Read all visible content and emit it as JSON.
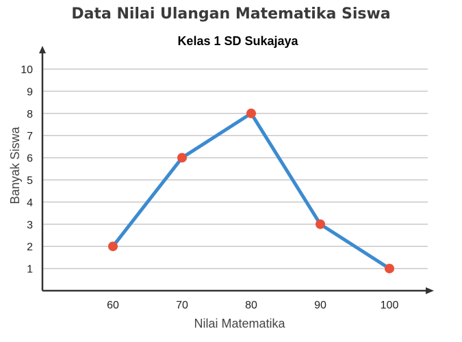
{
  "chart_data": {
    "type": "line",
    "title": "Data Nilai Ulangan Matematika Siswa",
    "subtitle": "Kelas 1 SD Sukajaya",
    "xlabel": "Nilai Matematika",
    "ylabel": "Banyak Siswa",
    "x": [
      60,
      70,
      80,
      90,
      100
    ],
    "values": [
      2,
      6,
      8,
      3,
      1
    ],
    "ylim": [
      0,
      10
    ],
    "yticks": [
      1,
      2,
      3,
      4,
      5,
      6,
      7,
      8,
      9,
      10
    ],
    "grid": true,
    "colors": {
      "line": "#3c8bd0",
      "marker": "#e8503a",
      "grid": "#c8c8c8",
      "axis": "#333333"
    }
  }
}
